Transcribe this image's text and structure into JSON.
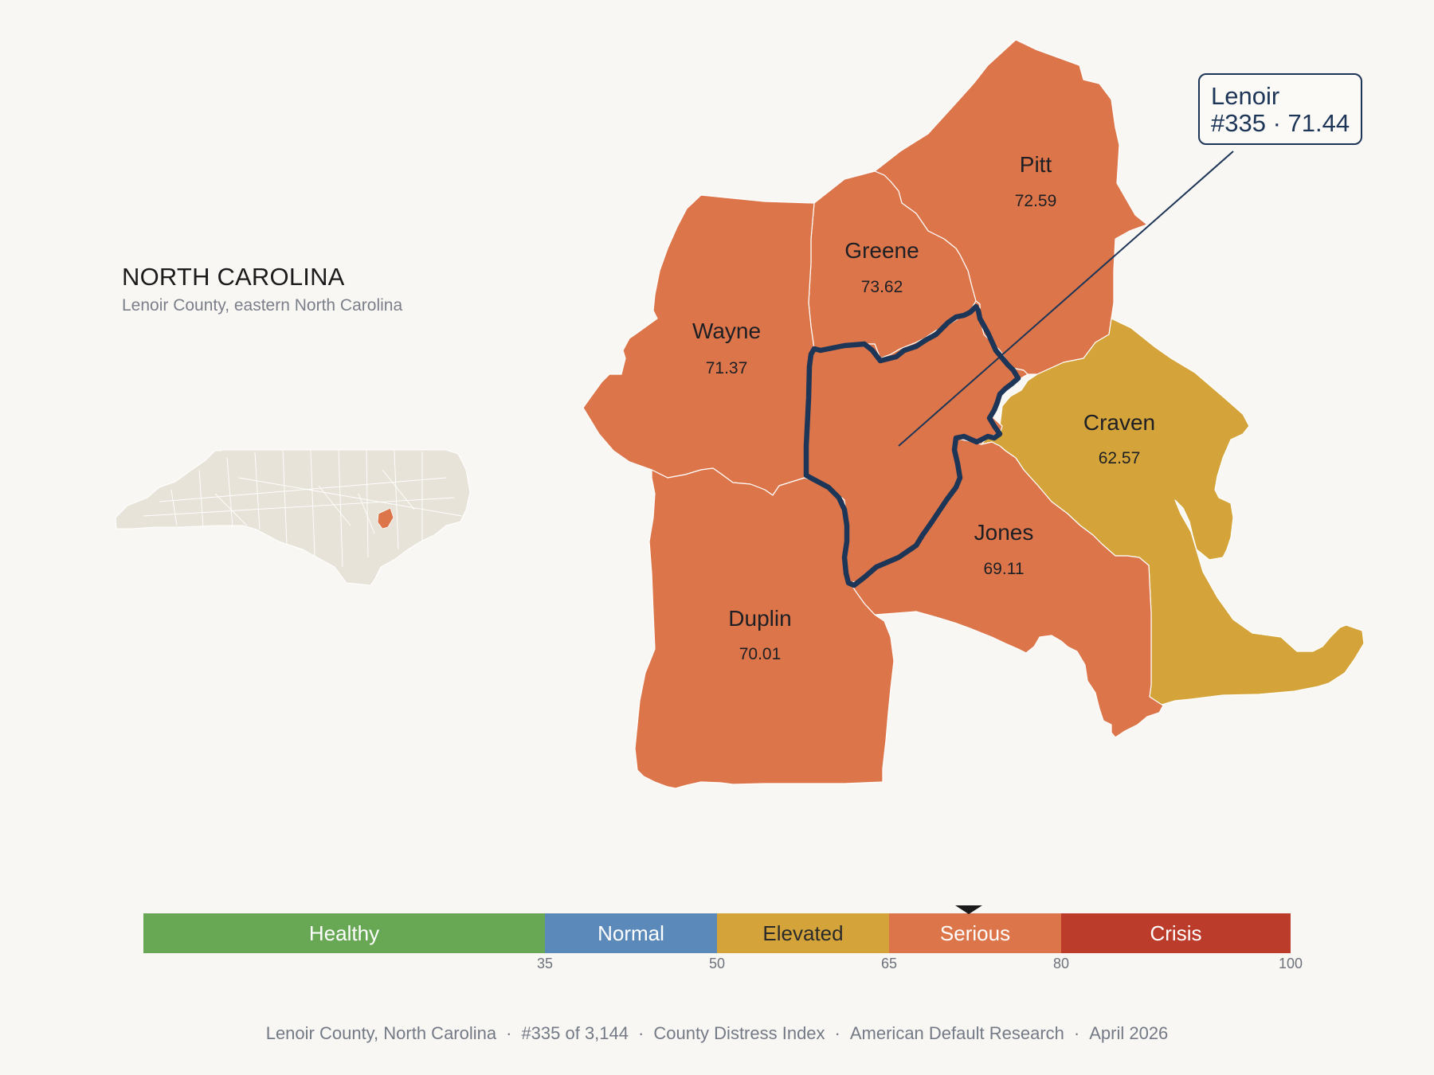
{
  "state": {
    "title": "NORTH CAROLINA",
    "subtitle": "Lenoir County, eastern North Carolina"
  },
  "colors": {
    "healthy": "#68a855",
    "normal": "#5b8aba",
    "elevated": "#d4a43a",
    "serious": "#dc764a",
    "crisis": "#bc3c2b",
    "highlight_outline": "#1d3557",
    "inset_state": "#e8e3d9"
  },
  "counties": [
    {
      "name": "Pitt",
      "score": "72.59",
      "category": "serious"
    },
    {
      "name": "Greene",
      "score": "73.62",
      "category": "serious"
    },
    {
      "name": "Wayne",
      "score": "71.37",
      "category": "serious"
    },
    {
      "name": "Craven",
      "score": "62.57",
      "category": "elevated"
    },
    {
      "name": "Jones",
      "score": "69.11",
      "category": "serious"
    },
    {
      "name": "Duplin",
      "score": "70.01",
      "category": "serious"
    },
    {
      "name": "Lenoir",
      "score": "71.44",
      "category": "serious",
      "highlighted": true
    }
  ],
  "callout": {
    "name": "Lenoir",
    "rank_score": "#335 · 71.44"
  },
  "scale": {
    "min": 0,
    "max": 100,
    "marker_value": 71.44,
    "segments": [
      {
        "label": "Healthy",
        "from": 0,
        "to": 35,
        "color": "#68a855",
        "text_color": "#ffffff"
      },
      {
        "label": "Normal",
        "from": 35,
        "to": 50,
        "color": "#5b8aba",
        "text_color": "#ffffff"
      },
      {
        "label": "Elevated",
        "from": 50,
        "to": 65,
        "color": "#d4a43a",
        "text_color": "#2a2a2a"
      },
      {
        "label": "Serious",
        "from": 65,
        "to": 80,
        "color": "#dc764a",
        "text_color": "#ffffff"
      },
      {
        "label": "Crisis",
        "from": 80,
        "to": 100,
        "color": "#bc3c2b",
        "text_color": "#ffffff"
      }
    ],
    "ticks": [
      "35",
      "50",
      "65",
      "80",
      "100"
    ]
  },
  "footer": {
    "county": "Lenoir County, North Carolina",
    "rank": "#335 of 3,144",
    "index": "County Distress Index",
    "source": "American Default Research",
    "date": "April 2026",
    "separator": "·"
  }
}
